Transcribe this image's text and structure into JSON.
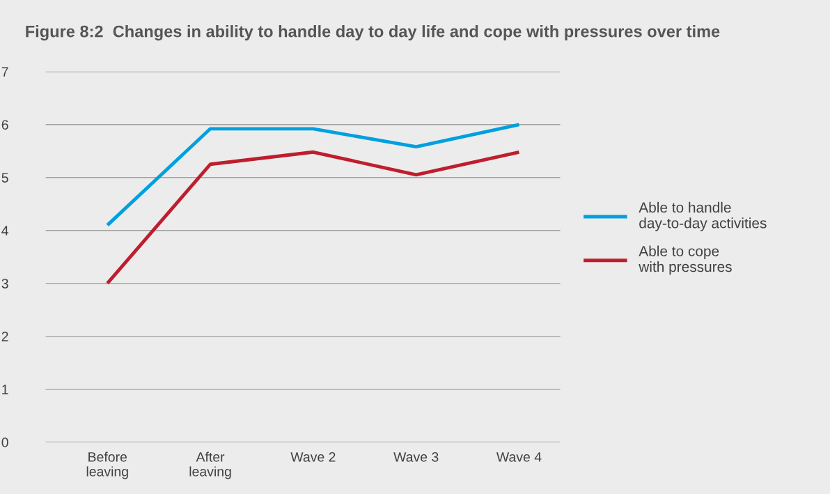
{
  "chart_data": {
    "type": "line",
    "title": "Figure 8:2  Changes in ability to handle day to day life and cope with pressures over time",
    "categories": [
      "Before\nleaving",
      "After\nleaving",
      "Wave 2",
      "Wave 3",
      "Wave 4"
    ],
    "series": [
      {
        "name": "Able to handle\nday-to-day activities",
        "color": "#00a0df",
        "values": [
          4.1,
          5.92,
          5.92,
          5.58,
          6.0
        ]
      },
      {
        "name": "Able to cope\nwith pressures",
        "color": "#be1e2d",
        "values": [
          3.0,
          5.25,
          5.48,
          5.05,
          5.48
        ]
      }
    ],
    "ylim": [
      0,
      7
    ],
    "yticks": [
      0,
      1,
      2,
      3,
      4,
      5,
      6,
      7
    ],
    "grid": "y",
    "legend": "right",
    "marker": "none",
    "line_style": "solid"
  }
}
